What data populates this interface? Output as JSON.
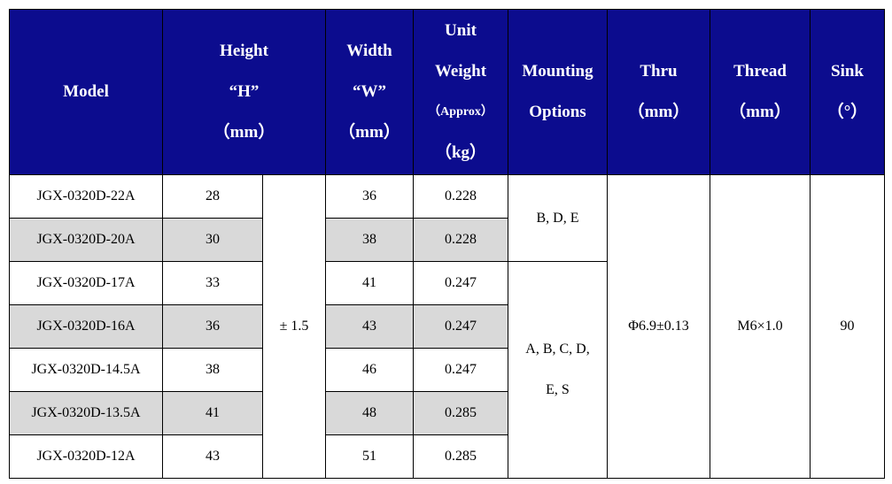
{
  "header": {
    "columns": [
      {
        "lines": [
          "Model"
        ]
      },
      {
        "lines": [
          "Height",
          "“H”",
          "（mm）"
        ]
      },
      {
        "lines": [
          "Width",
          "“W”",
          "（mm）"
        ]
      },
      {
        "lines": [
          "Unit",
          "Weight",
          "（Approx）",
          "（kg）"
        ]
      },
      {
        "lines": [
          "Mounting",
          "Options"
        ]
      },
      {
        "lines": [
          "Thru",
          "（mm）"
        ]
      },
      {
        "lines": [
          "Thread",
          "（mm）"
        ]
      },
      {
        "lines": [
          "Sink",
          "（°）"
        ]
      }
    ]
  },
  "rows": [
    {
      "model": "JGX-0320D-22A",
      "height": "28",
      "width": "36",
      "weight": "0.228"
    },
    {
      "model": "JGX-0320D-20A",
      "height": "30",
      "width": "38",
      "weight": "0.228"
    },
    {
      "model": "JGX-0320D-17A",
      "height": "33",
      "width": "41",
      "weight": "0.247"
    },
    {
      "model": "JGX-0320D-16A",
      "height": "36",
      "width": "43",
      "weight": "0.247"
    },
    {
      "model": "JGX-0320D-14.5A",
      "height": "38",
      "width": "46",
      "weight": "0.247"
    },
    {
      "model": "JGX-0320D-13.5A",
      "height": "41",
      "width": "48",
      "weight": "0.285"
    },
    {
      "model": "JGX-0320D-12A",
      "height": "43",
      "width": "51",
      "weight": "0.285"
    }
  ],
  "tolerance": "± 1.5",
  "mounting_options": [
    {
      "lines": [
        "B, D, E"
      ]
    },
    {
      "lines": [
        "A, B, C, D,",
        "E, S"
      ]
    }
  ],
  "thru": "Φ6.9±0.13",
  "thread": "M6×1.0",
  "sink": "90"
}
